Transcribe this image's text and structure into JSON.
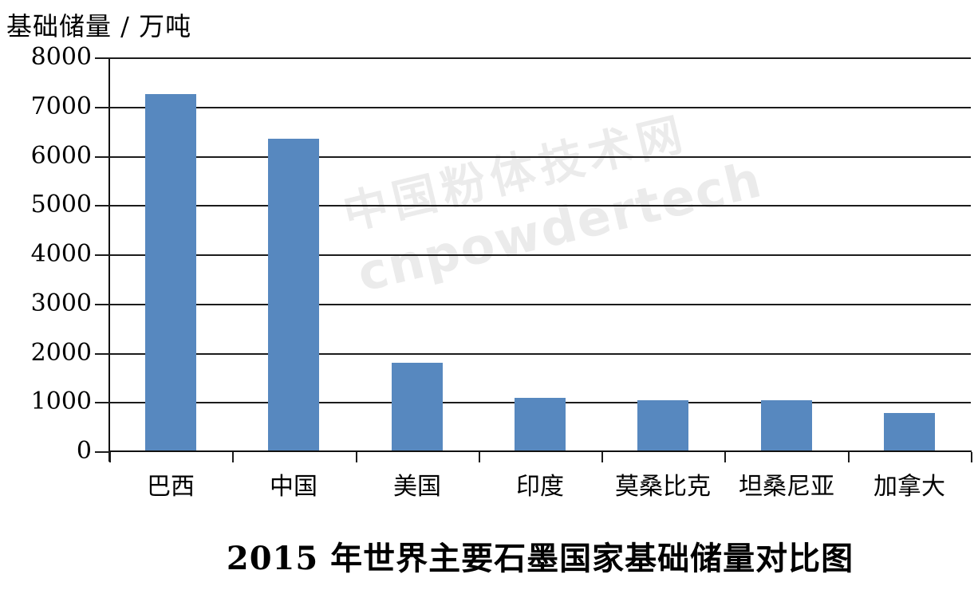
{
  "watermark": {
    "line1": "中国粉体技术网",
    "line2": "cnpowdertech"
  },
  "chart_data": {
    "type": "bar",
    "title": "2015 年世界主要石墨国家基础储量对比图",
    "ylabel": "基础储量 / 万吨",
    "xlabel": "",
    "categories": [
      "巴西",
      "中国",
      "美国",
      "印度",
      "莫桑比克",
      "坦桑尼亚",
      "加拿大"
    ],
    "values": [
      7250,
      6350,
      1800,
      1080,
      1030,
      1030,
      770
    ],
    "ylim": [
      0,
      8000
    ],
    "ytick_step": 1000,
    "yticks": [
      0,
      1000,
      2000,
      3000,
      4000,
      5000,
      6000,
      7000,
      8000
    ],
    "grid": "horizontal",
    "legend": "none",
    "bar_color": "#5788BF",
    "axis_color": "#1c1c1c",
    "watermark_color": "#ebebeb"
  }
}
